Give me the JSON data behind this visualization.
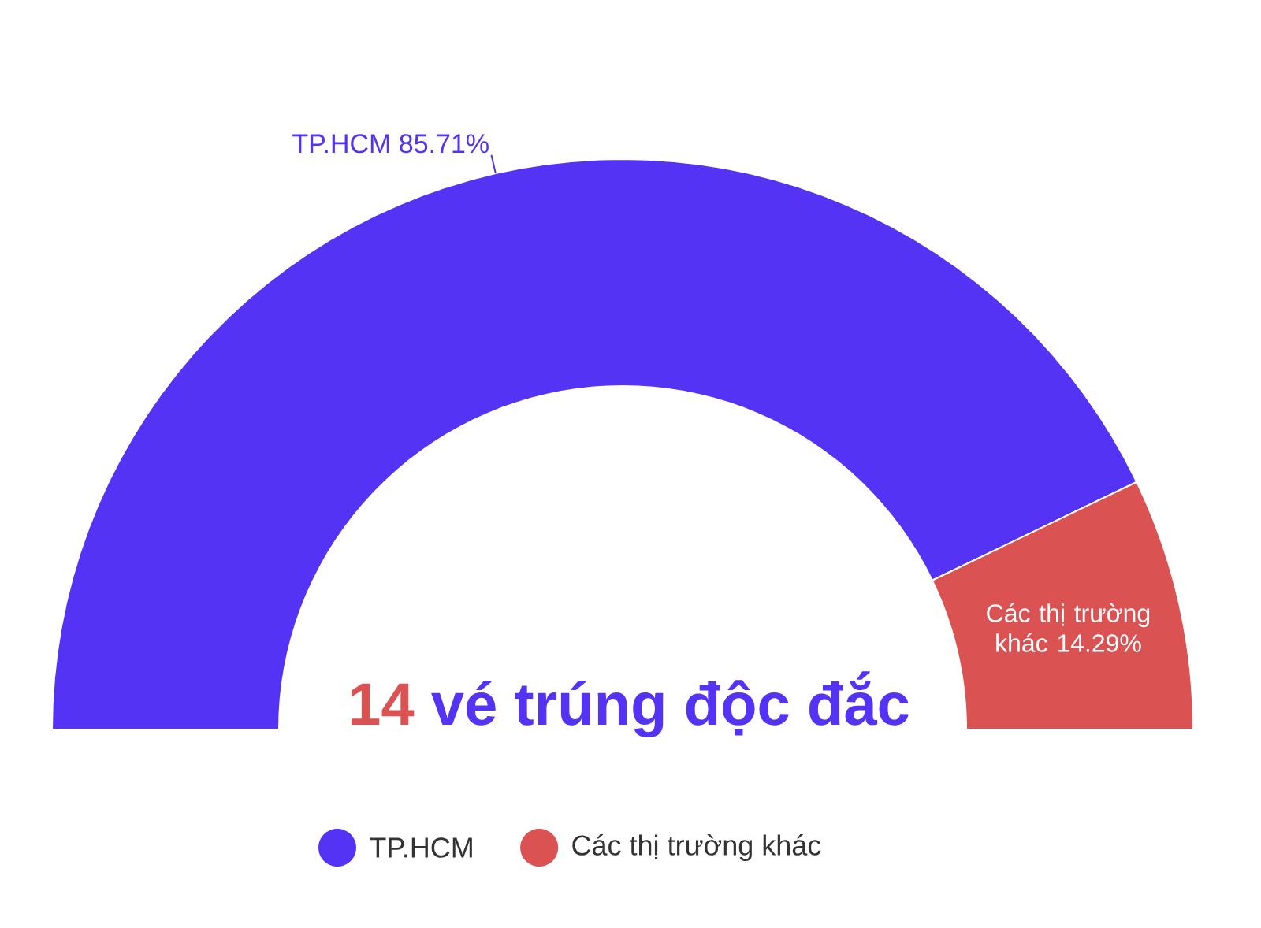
{
  "chart_data": {
    "type": "donut",
    "categories": [
      "TP.HCM",
      "Các thị trường khác"
    ],
    "values": [
      85.71,
      14.29
    ],
    "colors": [
      "#5533f5",
      "#db5252"
    ],
    "data_labels": true,
    "value_labels": [
      "85.71%",
      "14.29%"
    ],
    "legend": "bottom",
    "annotations": [
      "14",
      "vé trúng độc đắc"
    ]
  }
}
